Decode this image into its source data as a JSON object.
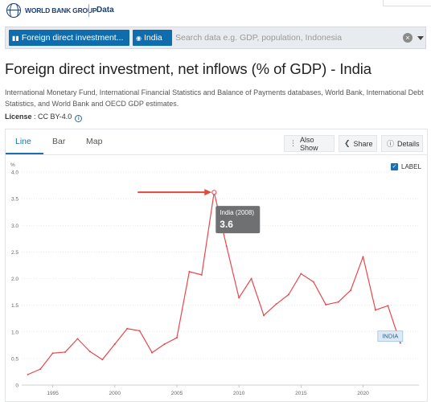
{
  "header": {
    "logo_text": "WORLD BANK GROUP",
    "section": "Data"
  },
  "search": {
    "indicator_chip": "Foreign direct investment...",
    "country_chip": "India",
    "placeholder": "Search data e.g. GDP, population, Indonesia"
  },
  "page": {
    "title": "Foreign direct investment, net inflows (% of GDP) - India",
    "source": "International Monetary Fund, International Financial Statistics and Balance of Payments databases, World Bank, International Debt Statistics, and World Bank and OECD GDP estimates.",
    "license_label": "License",
    "license_value": " : CC BY-4.0"
  },
  "tabs": [
    {
      "label": "Line"
    },
    {
      "label": "Bar"
    },
    {
      "label": "Map"
    }
  ],
  "buttons": {
    "also_show": "Also Show",
    "share": "Share",
    "details": "Details"
  },
  "label_toggle": "LABEL",
  "colors": {
    "line": "#e8474b",
    "accent": "#1a6fb0",
    "annotation_arrow": "#e04b3c"
  },
  "chart_data": {
    "type": "line",
    "ylabel": "%",
    "ylim": [
      0,
      4.0
    ],
    "xlim": [
      1992.5,
      2024.5
    ],
    "y_ticks": [
      0,
      0.5,
      1.0,
      1.5,
      2.0,
      2.5,
      3.0,
      3.5,
      4.0
    ],
    "y_tick_labels": [
      "0",
      "0.5",
      "1.0",
      "1.5",
      "2.0",
      "2.5",
      "3.0",
      "3.5",
      "4.0"
    ],
    "x_ticks": [
      1995,
      2000,
      2005,
      2010,
      2015,
      2020
    ],
    "x_tick_labels": [
      "1995",
      "2000",
      "2005",
      "2010",
      "2015",
      "2020"
    ],
    "grid": true,
    "series": [
      {
        "name": "India",
        "x": [
          1993,
          1994,
          1995,
          1996,
          1997,
          1998,
          1999,
          2000,
          2001,
          2002,
          2003,
          2004,
          2005,
          2006,
          2007,
          2008,
          2009,
          2010,
          2011,
          2012,
          2013,
          2014,
          2015,
          2016,
          2017,
          2018,
          2019,
          2020,
          2021,
          2022,
          2023
        ],
        "values": [
          0.2,
          0.3,
          0.6,
          0.62,
          0.87,
          0.63,
          0.48,
          0.77,
          1.06,
          1.02,
          0.61,
          0.77,
          0.89,
          2.13,
          2.07,
          3.62,
          2.61,
          1.64,
          2.0,
          1.31,
          1.52,
          1.7,
          2.09,
          1.94,
          1.51,
          1.56,
          1.78,
          2.41,
          1.41,
          1.49,
          0.79
        ]
      }
    ],
    "end_label": "INDIA",
    "tooltip": {
      "title": "India (2008)",
      "value": "3.6",
      "x": 2008,
      "y": 3.62
    }
  }
}
